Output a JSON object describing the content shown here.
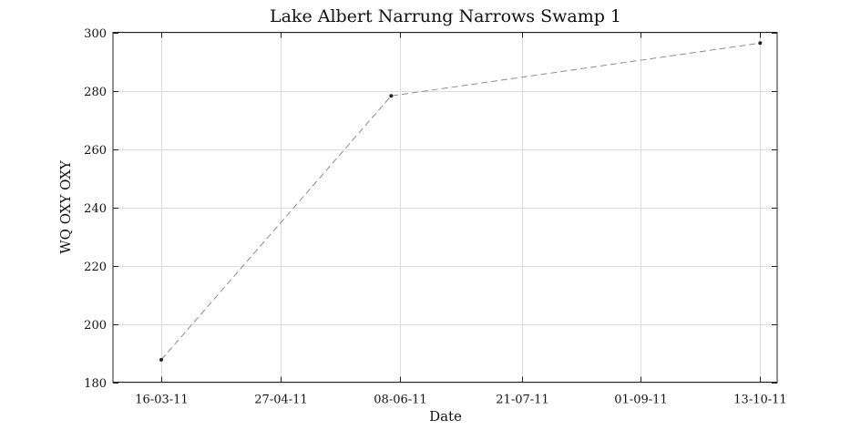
{
  "chart_data": {
    "type": "line",
    "title": "Lake Albert Narrung Narrows Swamp 1",
    "xlabel": "Date",
    "ylabel": "WQ OXY OXY",
    "x_type": "date",
    "x_format": "DD-MM-YY",
    "xlim": [
      "2011-02-27",
      "2011-10-19"
    ],
    "ylim": [
      180,
      300
    ],
    "grid": true,
    "x_ticks": [
      {
        "date": "2011-03-16",
        "label": "16-03-11"
      },
      {
        "date": "2011-04-27",
        "label": "27-04-11"
      },
      {
        "date": "2011-06-08",
        "label": "08-06-11"
      },
      {
        "date": "2011-07-21",
        "label": "21-07-11"
      },
      {
        "date": "2011-09-01",
        "label": "01-09-11"
      },
      {
        "date": "2011-10-13",
        "label": "13-10-11"
      }
    ],
    "y_ticks": [
      180,
      200,
      220,
      240,
      260,
      280,
      300
    ],
    "series": [
      {
        "x": [
          "2011-03-16",
          "2011-06-05",
          "2011-10-13"
        ],
        "y": [
          187.7,
          278.2,
          296.3
        ],
        "line_style": "dashed",
        "marker": "dot",
        "color": "#8c8c8c"
      }
    ]
  }
}
